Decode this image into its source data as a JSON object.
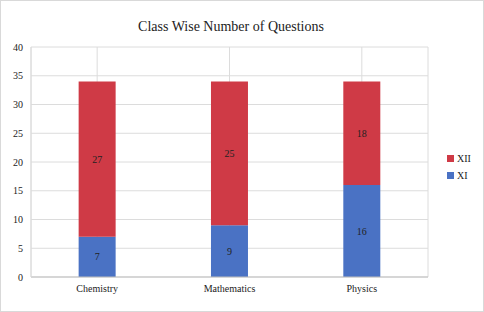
{
  "chart_data": {
    "type": "bar",
    "title": "Class Wise Number of Questions",
    "categories": [
      "Chemistry",
      "Mathematics",
      "Physics"
    ],
    "series": [
      {
        "name": "XI",
        "color": "#4a72c4",
        "values": [
          7,
          9,
          16
        ]
      },
      {
        "name": "XII",
        "color": "#cf3a46",
        "values": [
          27,
          25,
          18
        ]
      }
    ],
    "ylim": [
      0,
      40
    ],
    "yticks": [
      0,
      5,
      10,
      15,
      20,
      25,
      30,
      35,
      40
    ],
    "grid": true,
    "stacked": true,
    "data_labels": true,
    "legend": "right"
  }
}
